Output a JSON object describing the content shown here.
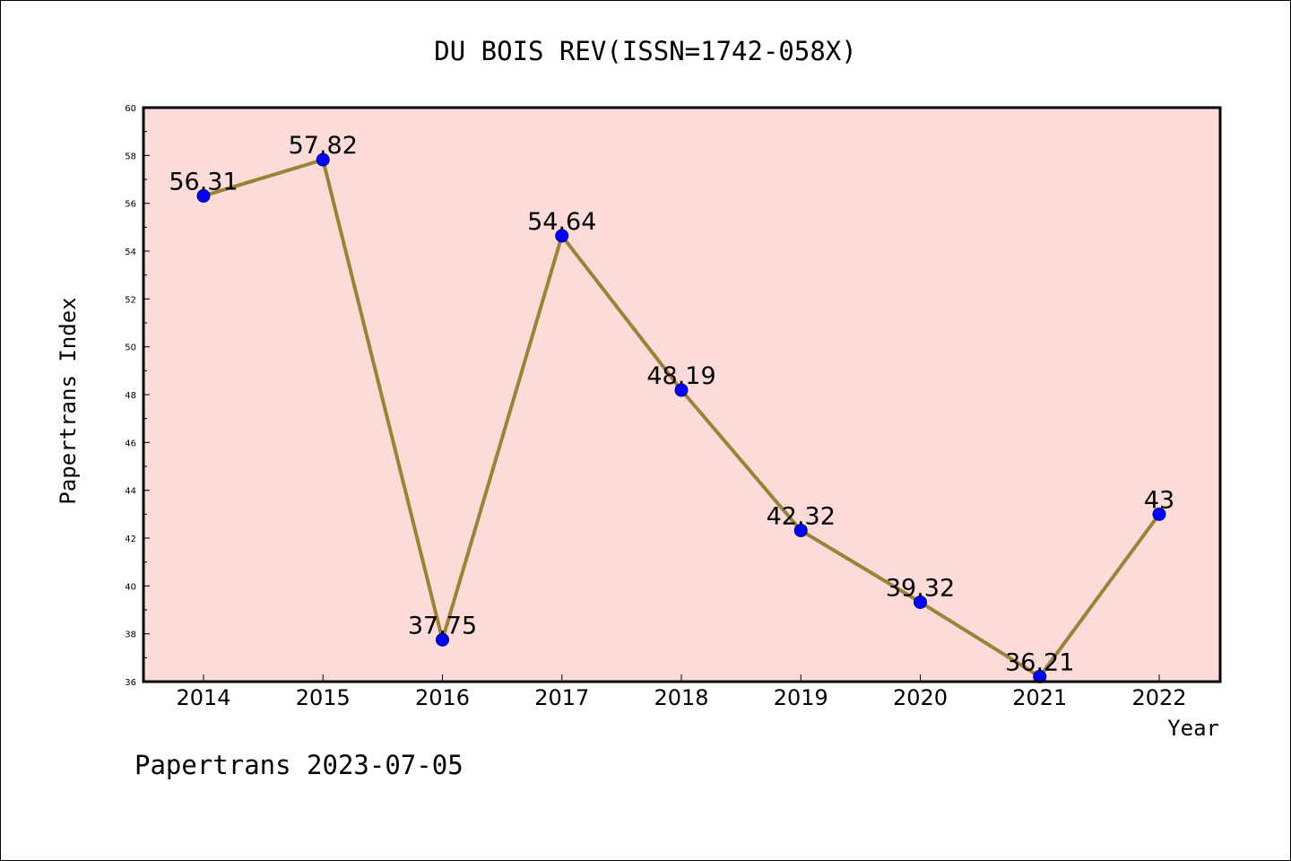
{
  "chart_data": {
    "type": "line",
    "title": "DU BOIS REV(ISSN=1742-058X)",
    "xlabel": "Year",
    "ylabel": "Papertrans Index",
    "categories": [
      "2014",
      "2015",
      "2016",
      "2017",
      "2018",
      "2019",
      "2020",
      "2021",
      "2022"
    ],
    "values": [
      56.31,
      57.82,
      37.75,
      54.64,
      48.19,
      42.32,
      39.32,
      36.21,
      43
    ],
    "data_labels": [
      "56.31",
      "57.82",
      "37.75",
      "54.64",
      "48.19",
      "42.32",
      "39.32",
      "36.21",
      "43"
    ],
    "ylim": [
      36,
      60
    ],
    "y_ticks": [
      "36",
      "38",
      "40",
      "42",
      "44",
      "46",
      "48",
      "50",
      "52",
      "54",
      "56",
      "58",
      "60"
    ],
    "grid": false,
    "legend": "none",
    "colors": {
      "plot_background": "#fddbd8",
      "line": "#9a8239",
      "marker": "#0000ff",
      "marker_edge": "#00008b",
      "axes": "#000000"
    }
  },
  "footer": {
    "text": "Papertrans 2023-07-05"
  }
}
